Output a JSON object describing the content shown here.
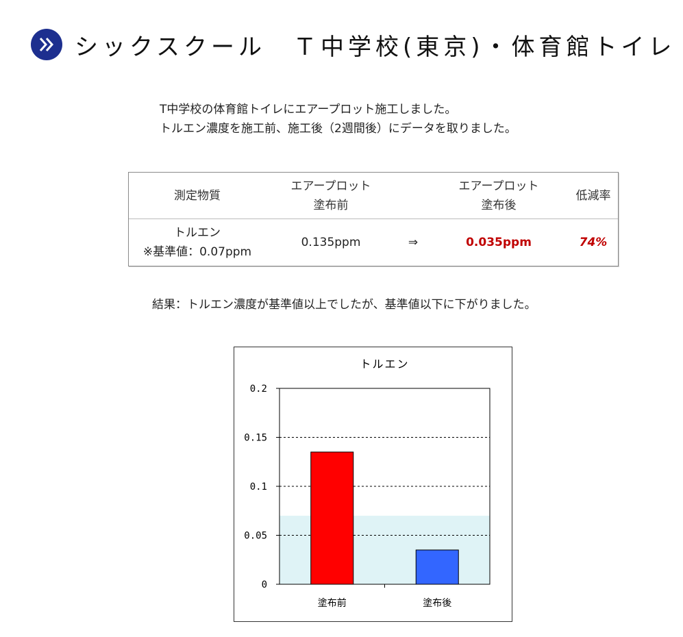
{
  "header": {
    "icon": "double-chevron-right-icon",
    "title": "シックスクール　Ｔ中学校(東京)・体育館トイレ"
  },
  "intro": {
    "line1": "T中学校の体育館トイレにエアープロット施工しました。",
    "line2": "トルエン濃度を施工前、施工後（2週間後）にデータを取りました。"
  },
  "table": {
    "headers": {
      "substance": "測定物質",
      "before_l1": "エアープロット",
      "before_l2": "塗布前",
      "after_l1": "エアープロット",
      "after_l2": "塗布後",
      "rate": "低減率"
    },
    "row": {
      "substance": "トルエン",
      "standard": "※基準値：0.07ppm",
      "before": "0.135ppm",
      "arrow": "⇒",
      "after": "0.035ppm",
      "rate": "74%"
    },
    "colors": {
      "highlight": "#c00000"
    }
  },
  "result": "結果：トルエン濃度が基準値以上でしたが、基準値以下に下がりました。",
  "chart_data": {
    "type": "bar",
    "title": "トルエン",
    "categories": [
      "塗布前",
      "塗布後"
    ],
    "values": [
      0.135,
      0.035
    ],
    "colors": [
      "#ff0000",
      "#3366ff"
    ],
    "ylim": [
      0,
      0.2
    ],
    "yticks": [
      0,
      0.05,
      0.1,
      0.15,
      0.2
    ],
    "ytick_labels": [
      "0",
      "0.05",
      "0.1",
      "0.15",
      "0.2"
    ],
    "reference_band": {
      "from": 0,
      "to": 0.07,
      "color": "#dff3f6"
    },
    "grid": "dashed",
    "xlabel": "",
    "ylabel": ""
  }
}
